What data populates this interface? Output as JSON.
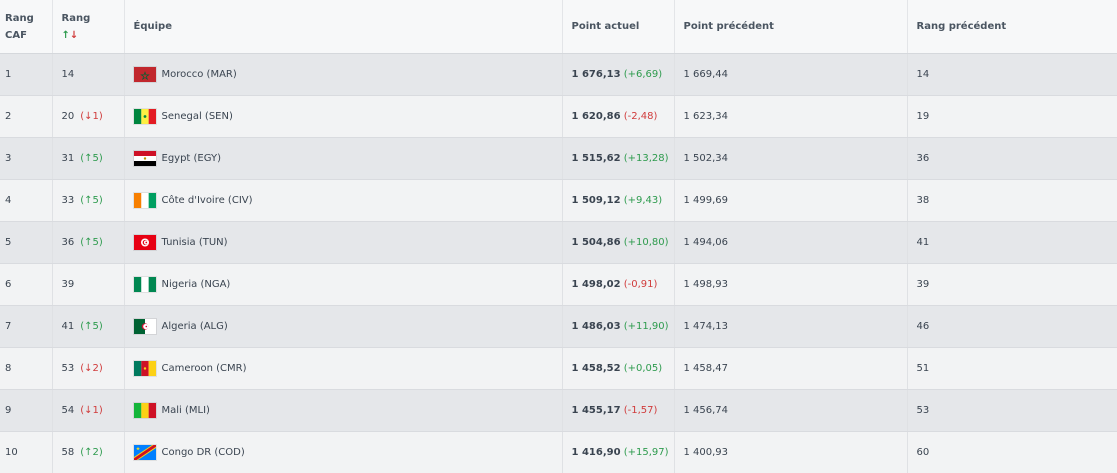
{
  "header": {
    "rank_caf": [
      "Rang",
      "CAF"
    ],
    "rank_world": "Rang",
    "sort_up": "↑",
    "sort_down": "↓",
    "team": "Équipe",
    "current_points": "Point actuel",
    "previous_points": "Point précédent",
    "previous_rank": "Rang précédent"
  },
  "rows": [
    {
      "caf": "1",
      "world": "14",
      "change": "",
      "change_dir": "",
      "flag_icon": "morocco-flag-icon",
      "team": "Morocco (MAR)",
      "points": "1 676,13",
      "delta": "(+6,69)",
      "delta_dir": "up",
      "prev_points": "1 669,44",
      "prev_rank": "14"
    },
    {
      "caf": "2",
      "world": "20",
      "change": "(↓1)",
      "change_dir": "down",
      "flag_icon": "senegal-flag-icon",
      "team": "Senegal (SEN)",
      "points": "1 620,86",
      "delta": "(-2,48)",
      "delta_dir": "down",
      "prev_points": "1 623,34",
      "prev_rank": "19"
    },
    {
      "caf": "3",
      "world": "31",
      "change": "(↑5)",
      "change_dir": "up",
      "flag_icon": "egypt-flag-icon",
      "team": "Egypt (EGY)",
      "points": "1 515,62",
      "delta": "(+13,28)",
      "delta_dir": "up",
      "prev_points": "1 502,34",
      "prev_rank": "36"
    },
    {
      "caf": "4",
      "world": "33",
      "change": "(↑5)",
      "change_dir": "up",
      "flag_icon": "cote-divoire-flag-icon",
      "team": "Côte d'Ivoire (CIV)",
      "points": "1 509,12",
      "delta": "(+9,43)",
      "delta_dir": "up",
      "prev_points": "1 499,69",
      "prev_rank": "38"
    },
    {
      "caf": "5",
      "world": "36",
      "change": "(↑5)",
      "change_dir": "up",
      "flag_icon": "tunisia-flag-icon",
      "team": "Tunisia (TUN)",
      "points": "1 504,86",
      "delta": "(+10,80)",
      "delta_dir": "up",
      "prev_points": "1 494,06",
      "prev_rank": "41"
    },
    {
      "caf": "6",
      "world": "39",
      "change": "",
      "change_dir": "",
      "flag_icon": "nigeria-flag-icon",
      "team": "Nigeria (NGA)",
      "points": "1 498,02",
      "delta": "(-0,91)",
      "delta_dir": "down",
      "prev_points": "1 498,93",
      "prev_rank": "39"
    },
    {
      "caf": "7",
      "world": "41",
      "change": "(↑5)",
      "change_dir": "up",
      "flag_icon": "algeria-flag-icon",
      "team": "Algeria (ALG)",
      "points": "1 486,03",
      "delta": "(+11,90)",
      "delta_dir": "up",
      "prev_points": "1 474,13",
      "prev_rank": "46"
    },
    {
      "caf": "8",
      "world": "53",
      "change": "(↓2)",
      "change_dir": "down",
      "flag_icon": "cameroon-flag-icon",
      "team": "Cameroon (CMR)",
      "points": "1 458,52",
      "delta": "(+0,05)",
      "delta_dir": "up",
      "prev_points": "1 458,47",
      "prev_rank": "51"
    },
    {
      "caf": "9",
      "world": "54",
      "change": "(↓1)",
      "change_dir": "down",
      "flag_icon": "mali-flag-icon",
      "team": "Mali (MLI)",
      "points": "1 455,17",
      "delta": "(-1,57)",
      "delta_dir": "down",
      "prev_points": "1 456,74",
      "prev_rank": "53"
    },
    {
      "caf": "10",
      "world": "58",
      "change": "(↑2)",
      "change_dir": "up",
      "flag_icon": "congo-dr-flag-icon",
      "team": "Congo DR (COD)",
      "points": "1 416,90",
      "delta": "(+15,97)",
      "delta_dir": "up",
      "prev_points": "1 400,93",
      "prev_rank": "60"
    }
  ]
}
